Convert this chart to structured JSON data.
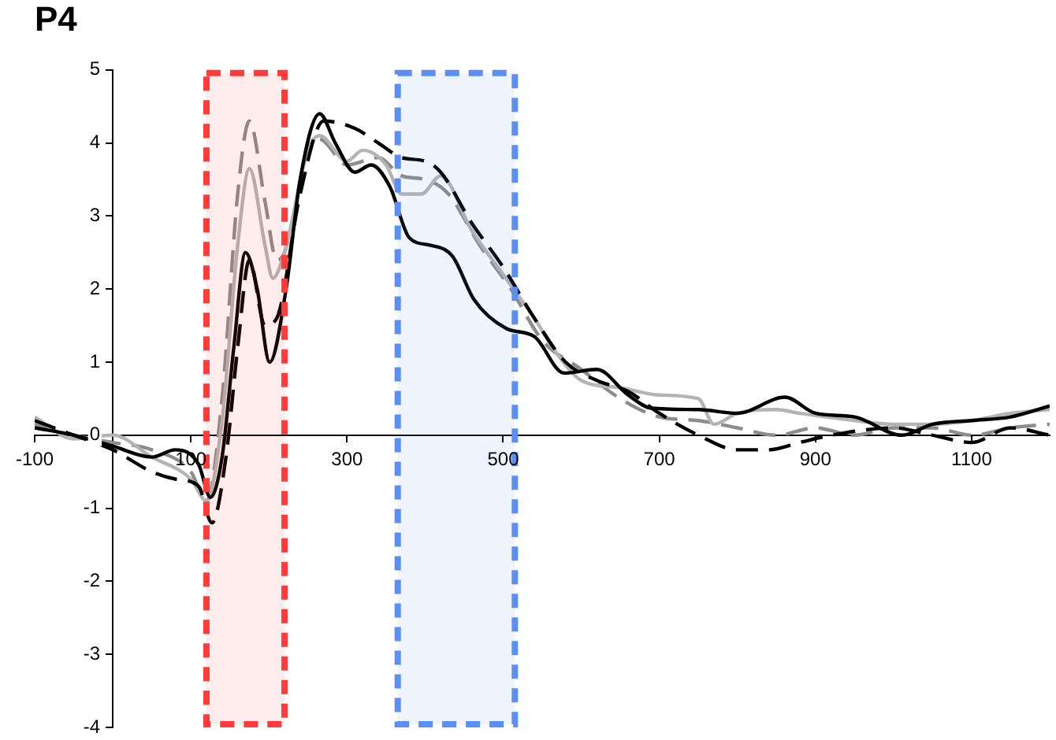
{
  "chart_data": {
    "type": "line",
    "title": "P4",
    "xlim": [
      -100,
      1200
    ],
    "xticks": [
      -100,
      100,
      300,
      500,
      700,
      900,
      1100
    ],
    "ylim": [
      -4,
      5
    ],
    "yticks": [
      -4,
      -3,
      -2,
      -1,
      0,
      1,
      2,
      3,
      4,
      5
    ],
    "grid": false,
    "legend": false,
    "marker": "none",
    "bands": [
      {
        "axis": "x",
        "from": 120,
        "to": 220,
        "color": "#ff3b3b"
      },
      {
        "axis": "x",
        "from": 365,
        "to": 515,
        "color": "#5b8ff5"
      }
    ],
    "series": [
      {
        "color": "#000000",
        "line_style": "solid",
        "x": [
          -100,
          -50,
          0,
          50,
          80,
          110,
          125,
          140,
          155,
          170,
          185,
          201,
          222,
          240,
          265,
          285,
          310,
          331,
          355,
          380,
          407,
          435,
          463,
          504,
          540,
          578,
          620,
          660,
          690,
          750,
          800,
          861,
          900,
          950,
          1011,
          1050,
          1100,
          1150,
          1200
        ],
        "values": [
          0.1,
          0.0,
          -0.15,
          -0.3,
          -0.2,
          -0.4,
          -0.85,
          -0.3,
          1.2,
          2.5,
          2.0,
          1.0,
          2.0,
          3.5,
          4.4,
          4.0,
          3.6,
          3.7,
          3.4,
          2.7,
          2.6,
          2.45,
          1.85,
          1.46,
          1.35,
          0.85,
          0.9,
          0.55,
          0.37,
          0.35,
          0.3,
          0.52,
          0.3,
          0.25,
          0.0,
          0.15,
          0.2,
          0.25,
          0.4
        ]
      },
      {
        "color": "#000000",
        "line_style": "dashed",
        "x": [
          -100,
          -50,
          0,
          50,
          80,
          110,
          127,
          145,
          160,
          175,
          195,
          210,
          240,
          270,
          310,
          340,
          370,
          400,
          420,
          460,
          500,
          540,
          580,
          620,
          660,
          700,
          750,
          800,
          840,
          880,
          920,
          1000,
          1050,
          1100,
          1150,
          1200
        ],
        "values": [
          0.2,
          0.0,
          -0.2,
          -0.5,
          -0.6,
          -0.7,
          -1.2,
          -0.3,
          1.2,
          2.4,
          1.5,
          1.6,
          3.3,
          4.3,
          4.2,
          4.0,
          3.8,
          3.75,
          3.6,
          2.9,
          2.3,
          1.6,
          1.0,
          0.75,
          0.6,
          0.3,
          0.0,
          -0.2,
          -0.2,
          -0.1,
          0.0,
          0.1,
          0.0,
          -0.1,
          0.1,
          0.0
        ]
      },
      {
        "color": "#b4b4b4",
        "line_style": "solid",
        "x": [
          -100,
          -50,
          0,
          50,
          100,
          120,
          140,
          160,
          175,
          195,
          205,
          220,
          250,
          265,
          300,
          320,
          350,
          370,
          395,
          420,
          460,
          500,
          540,
          570,
          600,
          650,
          700,
          750,
          770,
          800,
          850,
          880,
          950,
          1000,
          1050,
          1100,
          1150,
          1200
        ],
        "values": [
          0.25,
          -0.05,
          0.0,
          -0.3,
          -0.6,
          -0.9,
          0.2,
          2.6,
          3.65,
          2.6,
          2.15,
          2.5,
          3.9,
          4.1,
          3.75,
          3.9,
          3.7,
          3.3,
          3.3,
          3.55,
          2.8,
          2.2,
          1.6,
          1.1,
          0.75,
          0.65,
          0.55,
          0.5,
          0.15,
          0.3,
          0.35,
          0.3,
          0.2,
          0.15,
          0.15,
          0.2,
          0.3,
          0.35
        ]
      },
      {
        "color": "#8c8c8c",
        "line_style": "dashed",
        "x": [
          -100,
          -50,
          0,
          50,
          100,
          120,
          140,
          160,
          175,
          195,
          210,
          220,
          250,
          265,
          300,
          340,
          370,
          400,
          430,
          470,
          510,
          550,
          600,
          650,
          700,
          750,
          800,
          850,
          900,
          950,
          1000,
          1050,
          1100,
          1150,
          1200
        ],
        "values": [
          0.15,
          0.0,
          -0.1,
          -0.2,
          -0.5,
          -0.9,
          0.5,
          3.3,
          4.3,
          3.2,
          2.4,
          2.5,
          3.9,
          4.05,
          3.7,
          3.8,
          3.55,
          3.5,
          3.3,
          2.6,
          2.0,
          1.3,
          0.9,
          0.5,
          0.25,
          0.2,
          0.1,
          0.0,
          0.1,
          0.0,
          0.1,
          0.1,
          0.0,
          0.1,
          0.15
        ]
      }
    ]
  }
}
